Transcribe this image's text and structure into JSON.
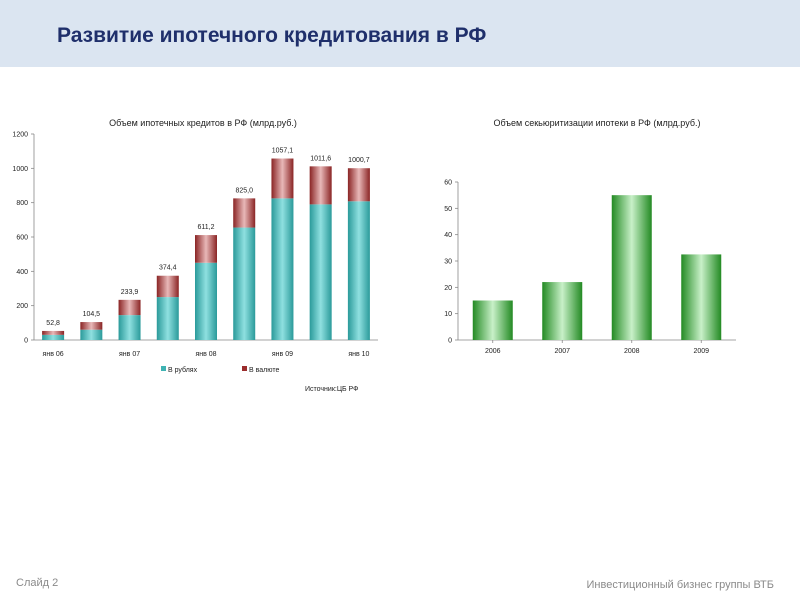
{
  "slide": {
    "title": "Развитие ипотечного кредитования в РФ",
    "slide_number": "Слайд 2",
    "footer": "Инвестиционный бизнес группы ВТБ"
  },
  "chart_data": [
    {
      "type": "bar",
      "stacked": true,
      "title": "Объем ипотечных кредитов в РФ (млрд.руб.)",
      "x_tick_labels": [
        "янв 06",
        "",
        "янв 07",
        "",
        "янв 08",
        "",
        "янв 09",
        "",
        "янв 10"
      ],
      "series": [
        {
          "name": "В рублях",
          "color": "#3fb3b3",
          "values": [
            30,
            60,
            145,
            250,
            450,
            655,
            825,
            790,
            808
          ]
        },
        {
          "name": "В валюте",
          "color": "#9b2d2d",
          "values": [
            22.8,
            44.5,
            88.9,
            124.4,
            161.2,
            170,
            232.1,
            221.6,
            192.7
          ]
        }
      ],
      "totals": [
        "52,8",
        "104,5",
        "233,9",
        "374,4",
        "611,2",
        "825,0",
        "1057,1",
        "1011,6",
        "1000,7"
      ],
      "ylim": [
        0,
        1200
      ],
      "y_ticks": [
        0,
        200,
        400,
        600,
        800,
        1000,
        1200
      ],
      "legend": "bottom",
      "source": "Источник:ЦБ РФ"
    },
    {
      "type": "bar",
      "title": "Объем секьюритизации ипотеки в РФ (млрд.руб.)",
      "categories": [
        "2006",
        "2007",
        "2008",
        "2009"
      ],
      "values": [
        15,
        22,
        55,
        32.5
      ],
      "color": "#2e9a2e",
      "ylim": [
        0,
        60
      ],
      "y_ticks": [
        0,
        10,
        20,
        30,
        40,
        50,
        60
      ]
    }
  ]
}
